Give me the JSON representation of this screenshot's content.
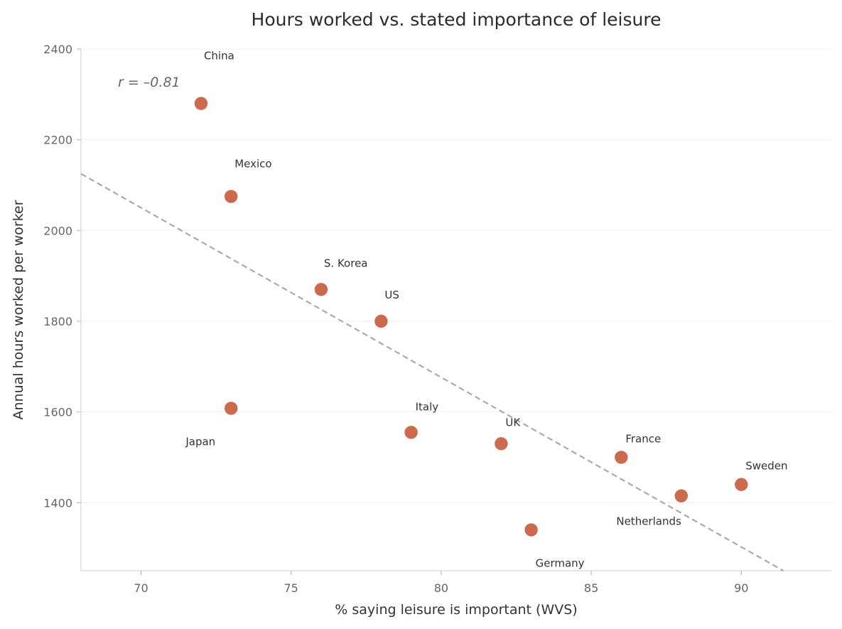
{
  "chart_data": {
    "type": "scatter",
    "title": "Hours worked vs. stated importance of leisure",
    "xlabel": "% saying leisure is important (WVS)",
    "ylabel": "Annual hours worked per worker",
    "xlim": [
      68,
      93
    ],
    "ylim": [
      1250,
      2400
    ],
    "xticks": [
      70,
      75,
      80,
      85,
      90
    ],
    "yticks": [
      1400,
      1600,
      1800,
      2000,
      2200,
      2400
    ],
    "grid": "horizontal",
    "point_color": "#cc6a4f",
    "trend_color": "#aaaaaa",
    "points": [
      {
        "label": "China",
        "x": 72,
        "y": 2280
      },
      {
        "label": "Mexico",
        "x": 73,
        "y": 2075
      },
      {
        "label": "S. Korea",
        "x": 76,
        "y": 1870
      },
      {
        "label": "US",
        "x": 78,
        "y": 1800
      },
      {
        "label": "Japan",
        "x": 73,
        "y": 1608
      },
      {
        "label": "Italy",
        "x": 79,
        "y": 1555
      },
      {
        "label": "UK",
        "x": 82,
        "y": 1530
      },
      {
        "label": "France",
        "x": 86,
        "y": 1500
      },
      {
        "label": "Sweden",
        "x": 90,
        "y": 1440
      },
      {
        "label": "Netherlands",
        "x": 88,
        "y": 1415
      },
      {
        "label": "Germany",
        "x": 83,
        "y": 1340
      }
    ],
    "trendline": {
      "x": [
        68,
        91.4
      ],
      "y": [
        2125,
        1250
      ]
    },
    "annotation": "r = –0.81"
  }
}
